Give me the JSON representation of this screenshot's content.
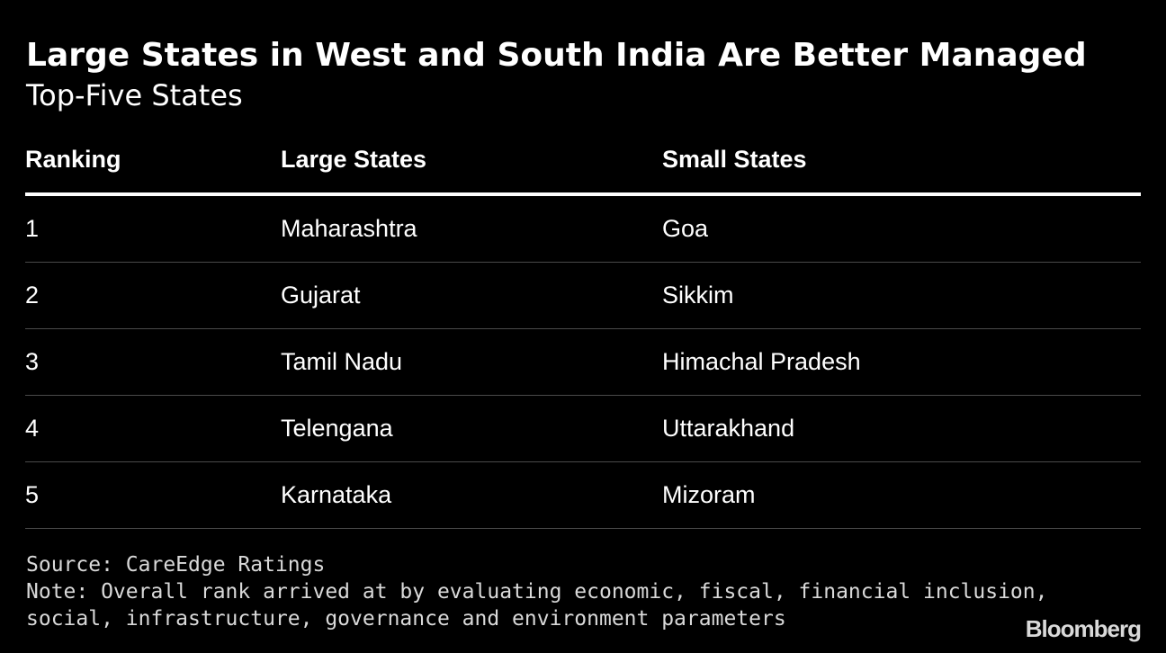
{
  "header": {
    "title": "Large States in West and South India Are Better Managed",
    "subtitle": "Top-Five States"
  },
  "chart_data": {
    "type": "table",
    "title": "Large States in West and South India Are Better Managed",
    "subtitle": "Top-Five States",
    "columns": [
      "Ranking",
      "Large States",
      "Small States"
    ],
    "rows": [
      [
        "1",
        "Maharashtra",
        "Goa"
      ],
      [
        "2",
        "Gujarat",
        "Sikkim"
      ],
      [
        "3",
        "Tamil Nadu",
        "Himachal Pradesh"
      ],
      [
        "4",
        "Telengana",
        "Uttarakhand"
      ],
      [
        "5",
        "Karnataka",
        "Mizoram"
      ]
    ]
  },
  "footer": {
    "source": "Source: CareEdge Ratings",
    "note_line1": "Note: Overall rank arrived at by evaluating economic, fiscal, financial inclusion,",
    "note_line2": "social, infrastructure, governance and environment parameters",
    "brand": "Bloomberg"
  },
  "colors": {
    "background": "#000000",
    "text": "#ffffff",
    "muted_text": "#d9d9d9",
    "rule": "#4a4a4a"
  }
}
